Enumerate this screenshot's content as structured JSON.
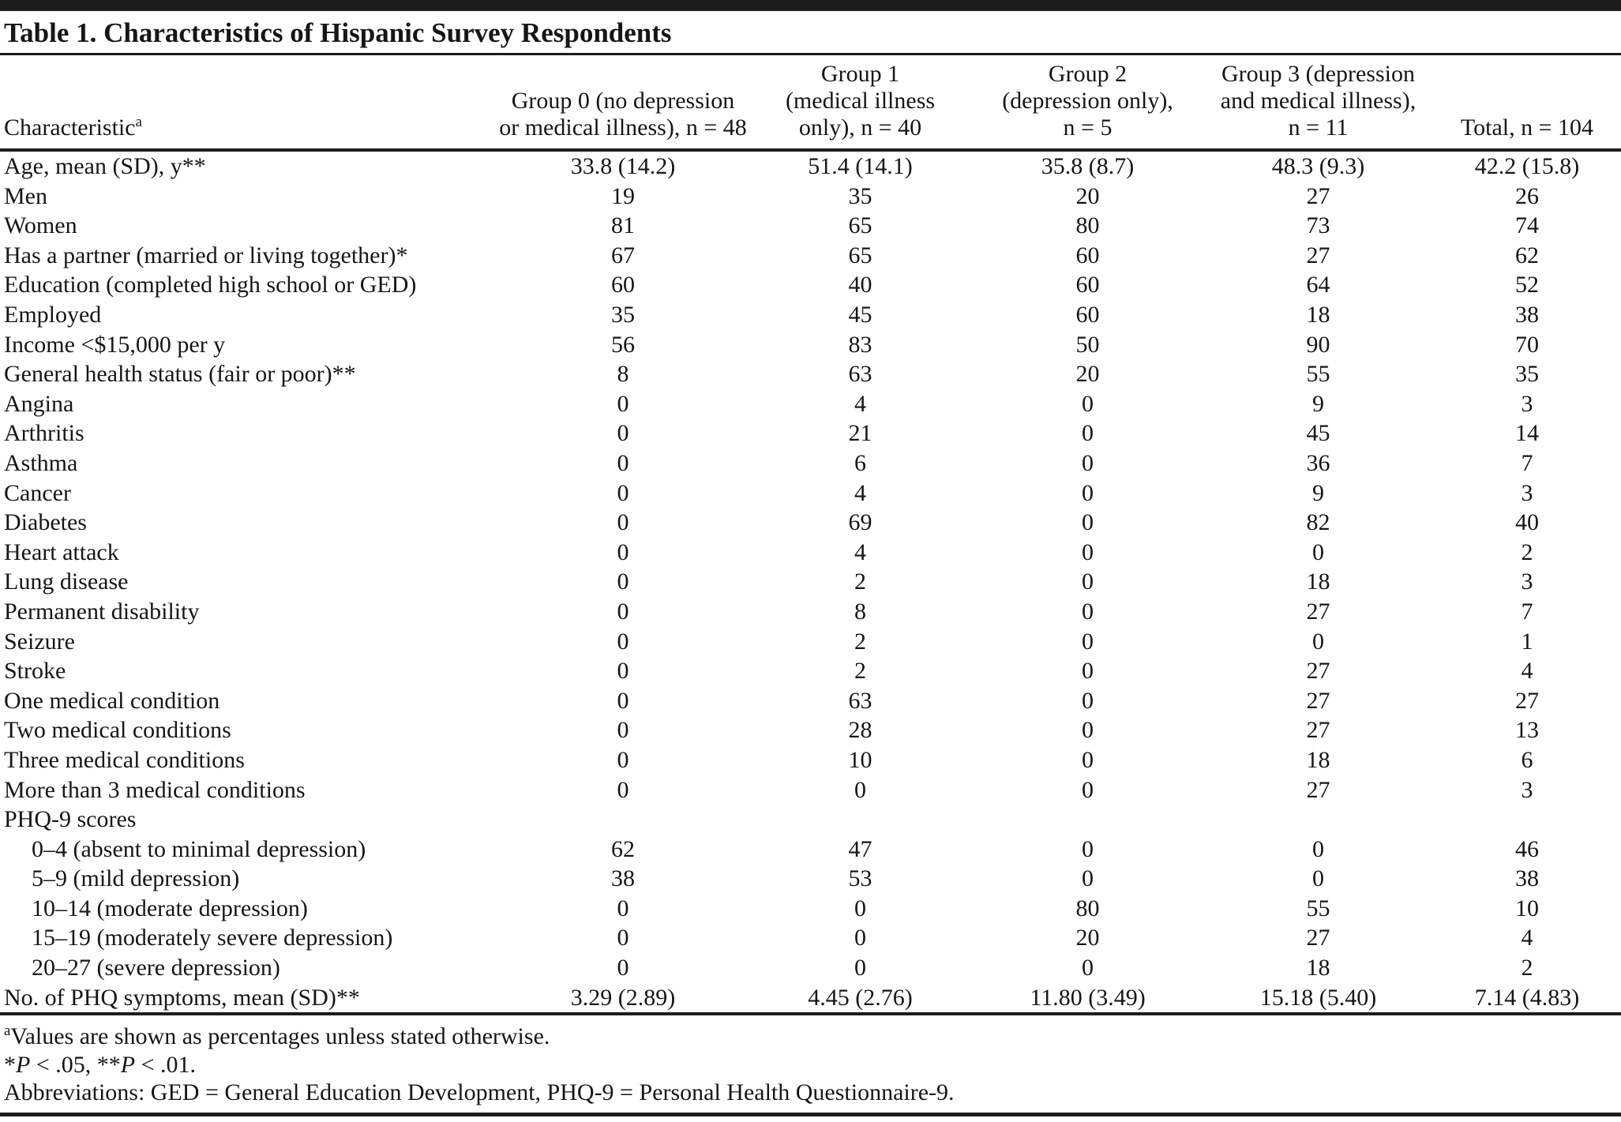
{
  "title": "Table 1. Characteristics of Hispanic Survey Respondents",
  "colors": {
    "rule": "#1c1c1c",
    "text": "#161616",
    "background": "#ffffff"
  },
  "table": {
    "columns": [
      {
        "lines": [
          "Characteristic"
        ],
        "sup": "a"
      },
      {
        "lines": [
          "Group 0 (no depression",
          "or medical illness), n = 48"
        ]
      },
      {
        "lines": [
          "Group 1",
          "(medical illness",
          "only), n = 40"
        ]
      },
      {
        "lines": [
          "Group 2",
          "(depression only),",
          "n = 5"
        ]
      },
      {
        "lines": [
          "Group 3 (depression",
          "and medical illness),",
          "n = 11"
        ]
      },
      {
        "lines": [
          "Total, n = 104"
        ]
      }
    ],
    "rows": [
      {
        "label": "Age, mean (SD), y**",
        "values": [
          "33.8 (14.2)",
          "51.4 (14.1)",
          "35.8 (8.7)",
          "48.3 (9.3)",
          "42.2 (15.8)"
        ]
      },
      {
        "label": "Men",
        "values": [
          "19",
          "35",
          "20",
          "27",
          "26"
        ]
      },
      {
        "label": "Women",
        "values": [
          "81",
          "65",
          "80",
          "73",
          "74"
        ]
      },
      {
        "label": "Has a partner (married or living together)*",
        "values": [
          "67",
          "65",
          "60",
          "27",
          "62"
        ]
      },
      {
        "label": "Education (completed high school or GED)",
        "values": [
          "60",
          "40",
          "60",
          "64",
          "52"
        ]
      },
      {
        "label": "Employed",
        "values": [
          "35",
          "45",
          "60",
          "18",
          "38"
        ]
      },
      {
        "label": "Income <$15,000 per y",
        "values": [
          "56",
          "83",
          "50",
          "90",
          "70"
        ]
      },
      {
        "label": "General health status (fair or poor)**",
        "values": [
          "8",
          "63",
          "20",
          "55",
          "35"
        ]
      },
      {
        "label": "Angina",
        "values": [
          "0",
          "4",
          "0",
          "9",
          "3"
        ]
      },
      {
        "label": "Arthritis",
        "values": [
          "0",
          "21",
          "0",
          "45",
          "14"
        ]
      },
      {
        "label": "Asthma",
        "values": [
          "0",
          "6",
          "0",
          "36",
          "7"
        ]
      },
      {
        "label": "Cancer",
        "values": [
          "0",
          "4",
          "0",
          "9",
          "3"
        ]
      },
      {
        "label": "Diabetes",
        "values": [
          "0",
          "69",
          "0",
          "82",
          "40"
        ]
      },
      {
        "label": "Heart attack",
        "values": [
          "0",
          "4",
          "0",
          "0",
          "2"
        ]
      },
      {
        "label": "Lung disease",
        "values": [
          "0",
          "2",
          "0",
          "18",
          "3"
        ]
      },
      {
        "label": "Permanent disability",
        "values": [
          "0",
          "8",
          "0",
          "27",
          "7"
        ]
      },
      {
        "label": "Seizure",
        "values": [
          "0",
          "2",
          "0",
          "0",
          "1"
        ]
      },
      {
        "label": "Stroke",
        "values": [
          "0",
          "2",
          "0",
          "27",
          "4"
        ]
      },
      {
        "label": "One medical condition",
        "values": [
          "0",
          "63",
          "0",
          "27",
          "27"
        ]
      },
      {
        "label": "Two medical conditions",
        "values": [
          "0",
          "28",
          "0",
          "27",
          "13"
        ]
      },
      {
        "label": "Three medical conditions",
        "values": [
          "0",
          "10",
          "0",
          "18",
          "6"
        ]
      },
      {
        "label": "More than 3 medical conditions",
        "values": [
          "0",
          "0",
          "0",
          "27",
          "3"
        ]
      },
      {
        "label": "PHQ-9 scores",
        "values": [
          "",
          "",
          "",
          "",
          ""
        ]
      },
      {
        "label": "0–4 (absent to minimal depression)",
        "indent": true,
        "values": [
          "62",
          "47",
          "0",
          "0",
          "46"
        ]
      },
      {
        "label": "5–9 (mild depression)",
        "indent": true,
        "values": [
          "38",
          "53",
          "0",
          "0",
          "38"
        ]
      },
      {
        "label": "10–14 (moderate depression)",
        "indent": true,
        "values": [
          "0",
          "0",
          "80",
          "55",
          "10"
        ]
      },
      {
        "label": "15–19 (moderately severe depression)",
        "indent": true,
        "values": [
          "0",
          "0",
          "20",
          "27",
          "4"
        ]
      },
      {
        "label": "20–27 (severe depression)",
        "indent": true,
        "values": [
          "0",
          "0",
          "0",
          "18",
          "2"
        ]
      },
      {
        "label": "No. of PHQ symptoms, mean (SD)**",
        "values": [
          "3.29 (2.89)",
          "4.45 (2.76)",
          "11.80 (3.49)",
          "15.18 (5.40)",
          "7.14 (4.83)"
        ]
      }
    ]
  },
  "footnotes": {
    "a_sup": "a",
    "a_text": "Values are shown as percentages unless stated otherwise.",
    "sig": [
      {
        "stars": "*",
        "p": "P",
        "rest": " < .05, "
      },
      {
        "stars": "**",
        "p": "P",
        "rest": " < .01."
      }
    ],
    "abbreviations": "Abbreviations: GED = General Education Development, PHQ-9 = Personal Health Questionnaire-9."
  }
}
